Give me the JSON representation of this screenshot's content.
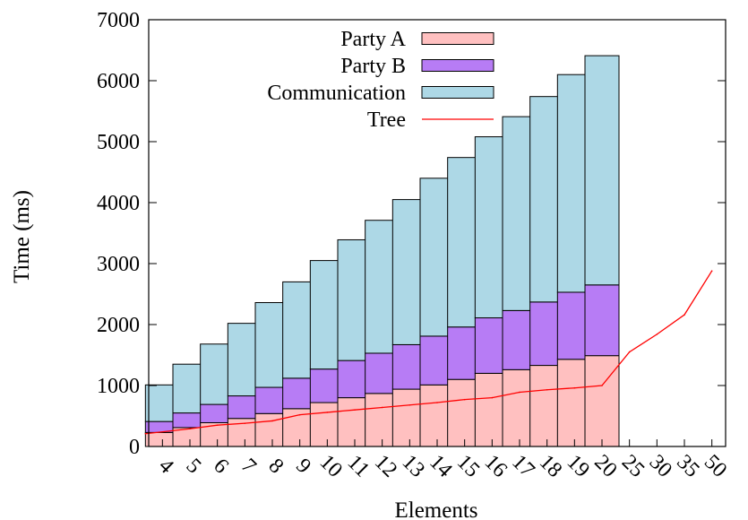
{
  "chart_data": {
    "type": "bar",
    "stacked": true,
    "title": "",
    "xlabel": "Elements",
    "ylabel": "Time (ms)",
    "ylim": [
      0,
      7000
    ],
    "yticks": [
      "0",
      "1000",
      "2000",
      "3000",
      "4000",
      "5000",
      "6000",
      "7000"
    ],
    "categories": [
      "4",
      "5",
      "6",
      "7",
      "8",
      "9",
      "10",
      "11",
      "12",
      "13",
      "14",
      "15",
      "16",
      "17",
      "18",
      "19",
      "20",
      "25",
      "30",
      "35",
      "50"
    ],
    "legend_position": "top-left",
    "series": [
      {
        "name": "Party A",
        "kind": "bar",
        "color": "#ffc0c0",
        "values": [
          230,
          310,
          390,
          460,
          540,
          620,
          720,
          800,
          870,
          940,
          1010,
          1100,
          1200,
          1260,
          1330,
          1430,
          1490,
          null,
          null,
          null,
          null
        ]
      },
      {
        "name": "Party B",
        "kind": "bar",
        "color": "#b77cf5",
        "values": [
          180,
          240,
          300,
          370,
          430,
          500,
          550,
          610,
          660,
          730,
          800,
          860,
          910,
          970,
          1040,
          1100,
          1160,
          null,
          null,
          null,
          null
        ]
      },
      {
        "name": "Communication",
        "kind": "bar",
        "color": "#add8e6",
        "values": [
          600,
          800,
          990,
          1190,
          1390,
          1580,
          1780,
          1980,
          2180,
          2380,
          2590,
          2780,
          2970,
          3180,
          3370,
          3570,
          3760,
          null,
          null,
          null,
          null
        ]
      },
      {
        "name": "Tree",
        "kind": "line",
        "color": "#ff0000",
        "values": [
          210,
          290,
          350,
          380,
          420,
          520,
          560,
          600,
          640,
          680,
          720,
          770,
          800,
          890,
          930,
          960,
          1000,
          1550,
          1840,
          2160,
          2880
        ]
      }
    ]
  }
}
